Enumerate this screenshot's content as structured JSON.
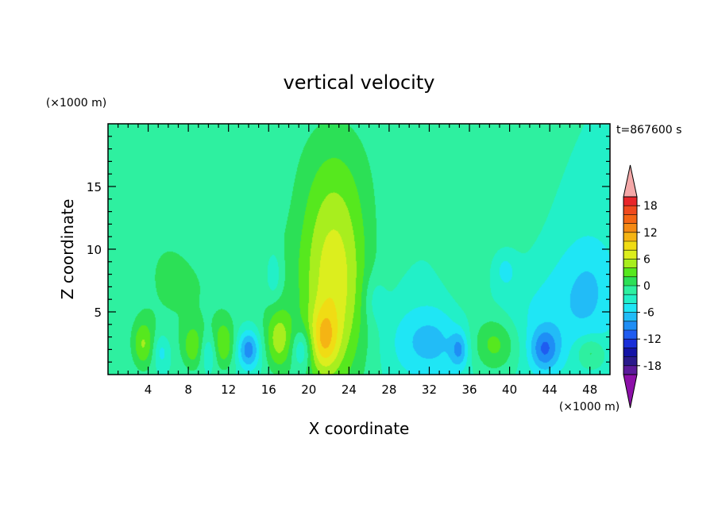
{
  "chart_data": {
    "type": "heatmap",
    "title": "vertical velocity",
    "xlabel": "X coordinate",
    "ylabel": "Z coordinate",
    "x_units": "(×1000 m)",
    "y_units": "(×1000 m)",
    "time_label": "t=867600 s",
    "xlim": [
      0,
      50
    ],
    "ylim": [
      0,
      20
    ],
    "x_ticks": [
      4,
      8,
      12,
      16,
      20,
      24,
      28,
      32,
      36,
      40,
      44,
      48
    ],
    "y_ticks": [
      5,
      10,
      15
    ],
    "colorbar": {
      "levels": [
        -20,
        -18,
        -16,
        -14,
        -12,
        -10,
        -8,
        -6,
        -4,
        -2,
        0,
        2,
        4,
        6,
        8,
        10,
        12,
        14,
        16,
        18,
        20
      ],
      "tick_labels": [
        "18",
        "12",
        "6",
        "0",
        "-6",
        "-12",
        "-18"
      ],
      "tick_values": [
        18,
        12,
        6,
        0,
        -6,
        -12,
        -18
      ],
      "colors": [
        "#5a1a9a",
        "#2a1a8c",
        "#1414a6",
        "#1a2fd8",
        "#1f5cf0",
        "#1f8ef5",
        "#22bcf7",
        "#1fe6f5",
        "#22f0c8",
        "#2ef0a0",
        "#2ce056",
        "#56e81e",
        "#a8ee1e",
        "#dcee1e",
        "#f0dc14",
        "#f5b414",
        "#f58a14",
        "#f56614",
        "#f04a1e",
        "#e8262a"
      ],
      "over_color": "#f4a8a8",
      "under_color": "#8c10a8"
    },
    "field": {
      "background": -2,
      "features": [
        {
          "x": 22.5,
          "z": 7.0,
          "sx": 2.4,
          "sz": 6.0,
          "w": 9.0
        },
        {
          "x": 22.5,
          "z": 16.0,
          "sx": 3.5,
          "sz": 4.5,
          "w": 2.0
        },
        {
          "x": 5.5,
          "z": 8.5,
          "sx": 2.8,
          "sz": 4.8,
          "w": 1.7
        },
        {
          "x": 9.5,
          "z": 6.5,
          "sx": 3.2,
          "sz": 3.0,
          "w": 1.3
        },
        {
          "x": 16.0,
          "z": 8.5,
          "sx": 2.5,
          "sz": 3.0,
          "w": 1.4
        },
        {
          "x": 39.0,
          "z": 12.5,
          "sx": 2.6,
          "sz": 5.5,
          "w": 1.8
        },
        {
          "x": 35.5,
          "z": 6.5,
          "sx": 1.5,
          "sz": 3.0,
          "w": 1.3
        },
        {
          "x": 3.5,
          "z": 2.4,
          "sx": 0.8,
          "sz": 1.4,
          "w": 5.5
        },
        {
          "x": 8.5,
          "z": 2.2,
          "sx": 0.8,
          "sz": 1.3,
          "w": 4.8
        },
        {
          "x": 11.5,
          "z": 2.4,
          "sx": 0.8,
          "sz": 1.4,
          "w": 5.5
        },
        {
          "x": 17.0,
          "z": 2.8,
          "sx": 1.0,
          "sz": 1.8,
          "w": 6.5
        },
        {
          "x": 21.5,
          "z": 2.8,
          "sx": 1.0,
          "sz": 1.8,
          "w": 6.5
        },
        {
          "x": 38.5,
          "z": 2.4,
          "sx": 1.7,
          "sz": 1.6,
          "w": 5.5
        },
        {
          "x": 48.0,
          "z": 1.8,
          "sx": 1.0,
          "sz": 0.9,
          "w": 4.0
        },
        {
          "x": 5.3,
          "z": 1.8,
          "sx": 0.6,
          "sz": 1.0,
          "w": -3.5
        },
        {
          "x": 10.0,
          "z": 1.8,
          "sx": 0.6,
          "sz": 1.0,
          "w": -3.5
        },
        {
          "x": 14.0,
          "z": 2.0,
          "sx": 0.8,
          "sz": 1.1,
          "w": -7.5
        },
        {
          "x": 19.3,
          "z": 2.0,
          "sx": 0.7,
          "sz": 1.1,
          "w": -4.5
        },
        {
          "x": 32.0,
          "z": 2.6,
          "sx": 2.8,
          "sz": 2.2,
          "w": -4.8
        },
        {
          "x": 35.0,
          "z": 2.0,
          "sx": 0.6,
          "sz": 1.0,
          "w": -5.0
        },
        {
          "x": 43.5,
          "z": 2.0,
          "sx": 1.0,
          "sz": 1.2,
          "w": -6.5
        },
        {
          "x": 43.0,
          "z": 4.5,
          "sx": 4.0,
          "sz": 3.5,
          "w": -2.6
        },
        {
          "x": 48.0,
          "z": 7.0,
          "sx": 2.2,
          "sz": 3.5,
          "w": -3.5
        },
        {
          "x": 16.5,
          "z": 8.0,
          "sx": 0.6,
          "sz": 1.5,
          "w": -3.2
        },
        {
          "x": 26.5,
          "z": 6.0,
          "sx": 0.8,
          "sz": 1.5,
          "w": -2.5
        },
        {
          "x": 39.5,
          "z": 8.5,
          "sx": 0.9,
          "sz": 1.2,
          "w": -3.0
        }
      ]
    }
  }
}
